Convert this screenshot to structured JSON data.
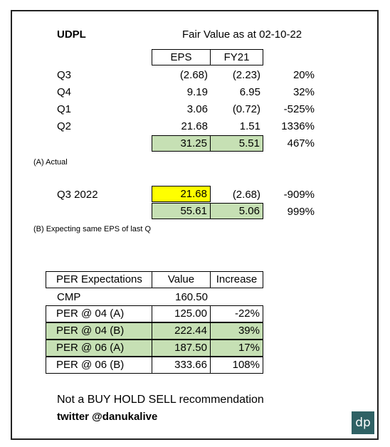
{
  "header": {
    "ticker": "UDPL",
    "fair_value_label": "Fair Value as at  02-10-22"
  },
  "eps_table": {
    "col_eps": "EPS",
    "col_fy21": "FY21",
    "rows": [
      {
        "label": "Q3",
        "eps": "(2.68)",
        "fy21": "(2.23)",
        "pct": "20%"
      },
      {
        "label": "Q4",
        "eps": "9.19",
        "fy21": "6.95",
        "pct": "32%"
      },
      {
        "label": "Q1",
        "eps": "3.06",
        "fy21": "(0.72)",
        "pct": "-525%"
      },
      {
        "label": "Q2",
        "eps": "21.68",
        "fy21": "1.51",
        "pct": "1336%"
      }
    ],
    "total": {
      "eps": "31.25",
      "fy21": "5.51",
      "pct": "467%"
    },
    "note": "(A)  Actual"
  },
  "projection": {
    "label": "Q3 2022",
    "eps": "21.68",
    "fy21": "(2.68)",
    "pct": "-909%",
    "total": {
      "eps": "55.61",
      "fy21": "5.06",
      "pct": "999%"
    },
    "note": "(B)  Expecting same EPS of last Q"
  },
  "per_table": {
    "headers": [
      "PER Expectations",
      "Value",
      "Increase"
    ],
    "rows": [
      {
        "label": "CMP",
        "value": "160.50",
        "increase": ""
      },
      {
        "label": "PER @ 04 (A)",
        "value": "125.00",
        "increase": "-22%"
      },
      {
        "label": "PER @ 04 (B)",
        "value": "222.44",
        "increase": "39%"
      },
      {
        "label": "PER @ 06 (A)",
        "value": "187.50",
        "increase": "17%"
      },
      {
        "label": "PER @ 06 (B)",
        "value": "333.66",
        "increase": "108%"
      }
    ]
  },
  "footer": {
    "disclaimer": "Not a BUY HOLD SELL recommendation",
    "twitter": "twitter @danukalive",
    "logo_text": "dp"
  },
  "colors": {
    "green_fill": "#c6e0b4",
    "yellow_fill": "#ffff00",
    "logo_bg": "#2f6164"
  }
}
